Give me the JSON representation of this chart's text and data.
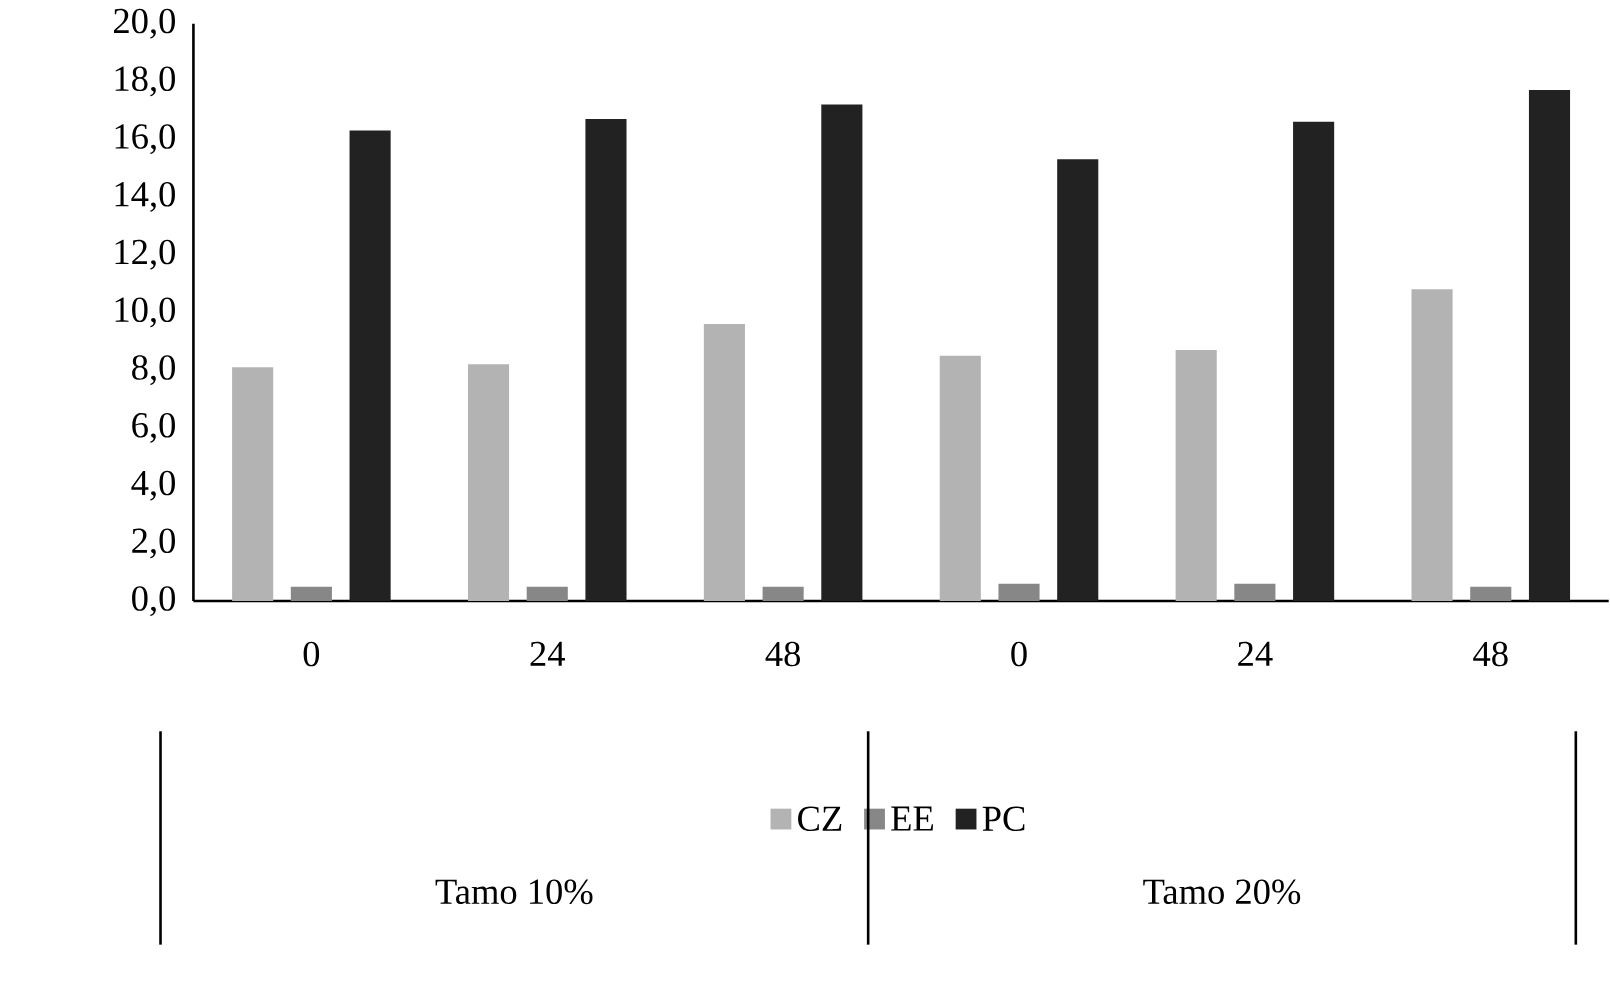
{
  "chart_data": {
    "type": "bar",
    "categories": [
      "0",
      "24",
      "48",
      "0",
      "24",
      "48"
    ],
    "series": [
      {
        "name": "CZ",
        "color": "#b3b3b3",
        "values": [
          8.1,
          8.2,
          9.6,
          8.5,
          8.7,
          10.8
        ]
      },
      {
        "name": "EE",
        "color": "#878787",
        "values": [
          0.5,
          0.5,
          0.5,
          0.6,
          0.6,
          0.5
        ]
      },
      {
        "name": "PC",
        "color": "#222222",
        "values": [
          16.3,
          16.7,
          17.2,
          15.3,
          16.6,
          17.7
        ]
      }
    ],
    "ylim": [
      0,
      20
    ],
    "yticks": [
      {
        "value": 0,
        "label": "0,0"
      },
      {
        "value": 2,
        "label": "2,0"
      },
      {
        "value": 4,
        "label": "4,0"
      },
      {
        "value": 6,
        "label": "6,0"
      },
      {
        "value": 8,
        "label": "8,0"
      },
      {
        "value": 10,
        "label": "10,0"
      },
      {
        "value": 12,
        "label": "12,0"
      },
      {
        "value": 14,
        "label": "14,0"
      },
      {
        "value": 16,
        "label": "16,0"
      },
      {
        "value": 18,
        "label": "18,0"
      },
      {
        "value": 20,
        "label": "20,0"
      }
    ],
    "annotations": [
      "Tamo 10%",
      "Tamo 20%"
    ],
    "legend": "bottom"
  }
}
